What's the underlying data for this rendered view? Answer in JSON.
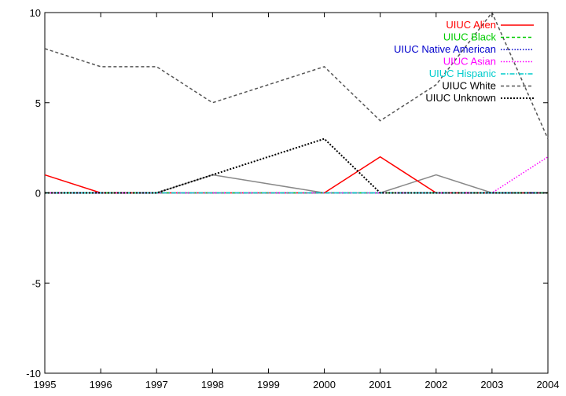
{
  "chart_data": {
    "type": "line",
    "title": "",
    "xlabel": "",
    "ylabel": "",
    "x": [
      1995,
      1996,
      1997,
      1998,
      1999,
      2000,
      2001,
      2002,
      2003,
      2004
    ],
    "xlim": [
      1995,
      2004
    ],
    "ylim": [
      -10,
      10
    ],
    "x_ticks": [
      "1995",
      "1996",
      "1997",
      "1998",
      "1999",
      "2000",
      "2001",
      "2002",
      "2003",
      "2004"
    ],
    "y_ticks": [
      "10",
      "5",
      "0",
      "-5",
      "-10"
    ],
    "grid": false,
    "legend_position": "top-right",
    "series": [
      {
        "name": "UIUC Alien",
        "color": "#ff0000",
        "dash": "solid",
        "values": [
          1,
          0,
          0,
          0,
          0,
          0,
          2,
          0,
          0,
          0
        ]
      },
      {
        "name": "UIUC Black",
        "color": "#00cc00",
        "dash": "dashed",
        "values": [
          0,
          0,
          0,
          0,
          0,
          0,
          0,
          0,
          0,
          0
        ]
      },
      {
        "name": "UIUC Native American",
        "color": "#0000cc",
        "dash": "dotted",
        "values": [
          0,
          0,
          0,
          0,
          0,
          0,
          0,
          0,
          0,
          0
        ]
      },
      {
        "name": "UIUC Asian",
        "color": "#ff00ff",
        "dash": "dotted",
        "values": [
          0,
          0,
          0,
          0,
          0,
          0,
          0,
          0,
          0,
          2
        ]
      },
      {
        "name": "UIUC Hispanic",
        "color": "#00cccc",
        "dash": "dashdot",
        "values": [
          0,
          0,
          0,
          0,
          0,
          0,
          0,
          0,
          0,
          0
        ]
      },
      {
        "name": "UIUC White",
        "color": "#555555",
        "dash": "dashed",
        "values": [
          8,
          7,
          7,
          5,
          6,
          7,
          4,
          6,
          10,
          3
        ]
      },
      {
        "name": "UIUC Unknown",
        "color": "#000000",
        "dash": "dotted-bold",
        "values": [
          0,
          0,
          0,
          1,
          2,
          3,
          0,
          0,
          0,
          0
        ]
      }
    ],
    "extra_lines": [
      {
        "color": "#888888",
        "values": [
          0,
          0,
          0,
          1,
          0.5,
          0,
          0,
          1,
          0,
          0
        ]
      }
    ]
  }
}
